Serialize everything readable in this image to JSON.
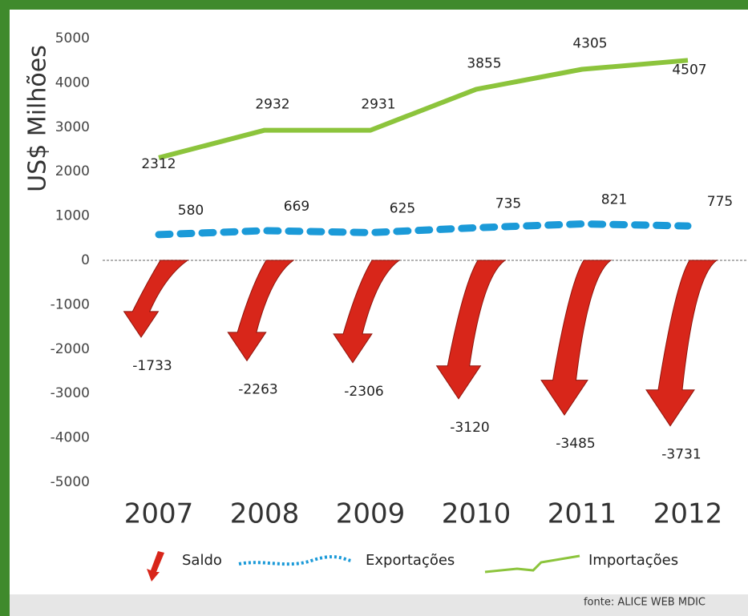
{
  "chart_data": {
    "type": "combo",
    "y_label": "US$ Milhões",
    "source": "fonte: ALICE WEB MDIC",
    "categories": [
      "2007",
      "2008",
      "2009",
      "2010",
      "2011",
      "2012"
    ],
    "ylim": [
      -5000,
      5000
    ],
    "yticks": [
      5000,
      4000,
      3000,
      2000,
      1000,
      0,
      -1000,
      -2000,
      -3000,
      -4000,
      -5000
    ],
    "series": [
      {
        "name": "Saldo",
        "type": "arrow",
        "color": "#d8261a",
        "values": [
          -1733,
          -2263,
          -2306,
          -3120,
          -3485,
          -3731
        ]
      },
      {
        "name": "Exportações",
        "type": "dotted-line",
        "color": "#1b9ad8",
        "values": [
          580,
          669,
          625,
          735,
          821,
          775
        ]
      },
      {
        "name": "Importações",
        "type": "line",
        "color": "#8cc43c",
        "values": [
          2312,
          2932,
          2931,
          3855,
          4305,
          4507
        ]
      }
    ]
  }
}
